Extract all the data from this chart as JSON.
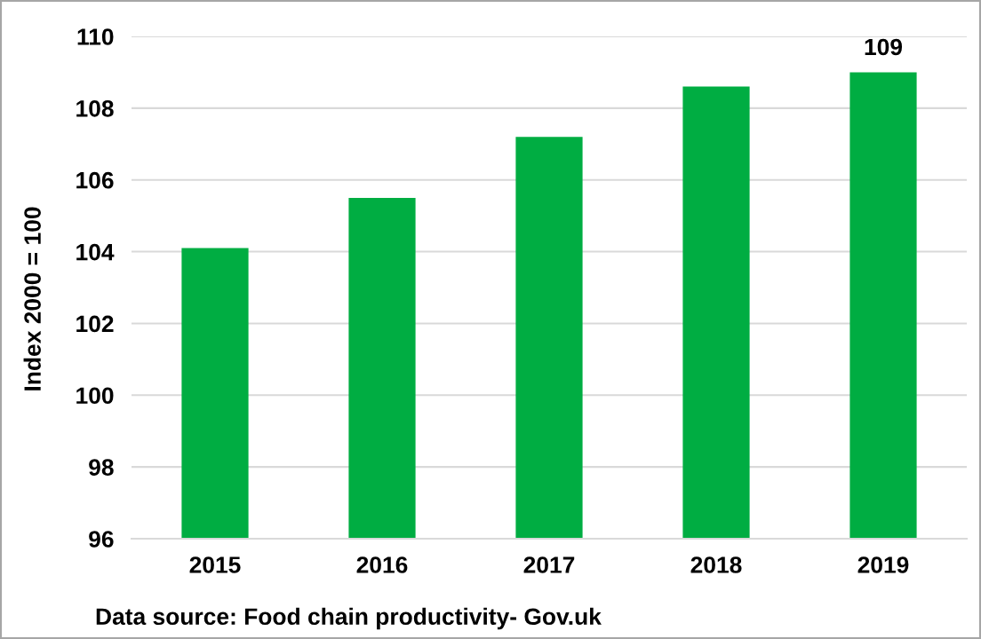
{
  "chart_data": {
    "type": "bar",
    "categories": [
      "2015",
      "2016",
      "2017",
      "2018",
      "2019"
    ],
    "values": [
      104.1,
      105.5,
      107.2,
      108.6,
      109
    ],
    "color": "#00ad42",
    "ylabel": "Index 2000 = 100",
    "ylim": [
      96,
      110
    ],
    "yticks": [
      96,
      98,
      100,
      102,
      104,
      106,
      108,
      110
    ],
    "grid": "y",
    "value_labels": [
      null,
      null,
      null,
      null,
      "109"
    ],
    "annotations": [
      "Data source: Food chain productivity- Gov.uk"
    ]
  }
}
